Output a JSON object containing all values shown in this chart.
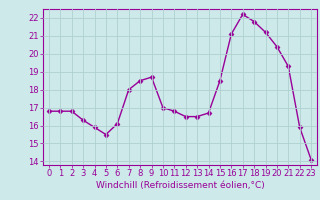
{
  "x": [
    0,
    1,
    2,
    3,
    4,
    5,
    6,
    7,
    8,
    9,
    10,
    11,
    12,
    13,
    14,
    15,
    16,
    17,
    18,
    19,
    20,
    21,
    22,
    23
  ],
  "y": [
    16.8,
    16.8,
    16.8,
    16.3,
    15.9,
    15.5,
    16.1,
    18.0,
    18.5,
    18.7,
    17.0,
    16.8,
    16.5,
    16.5,
    16.7,
    18.5,
    21.1,
    22.2,
    21.8,
    21.2,
    20.4,
    19.3,
    15.9,
    14.1
  ],
  "line_color": "#990099",
  "marker": "D",
  "marker_size": 2.5,
  "background_color": "#cde9e9",
  "grid_color": "#b0d0d0",
  "xlabel": "Windchill (Refroidissement éolien,°C)",
  "ylabel": "",
  "xlim": [
    -0.5,
    23.5
  ],
  "ylim": [
    13.8,
    22.5
  ],
  "yticks": [
    14,
    15,
    16,
    17,
    18,
    19,
    20,
    21,
    22
  ],
  "xticks": [
    0,
    1,
    2,
    3,
    4,
    5,
    6,
    7,
    8,
    9,
    10,
    11,
    12,
    13,
    14,
    15,
    16,
    17,
    18,
    19,
    20,
    21,
    22,
    23
  ],
  "tick_color": "#990099",
  "tick_label_color": "#990099",
  "xlabel_color": "#990099",
  "label_fontsize": 6.5,
  "tick_fontsize": 6.0,
  "line_width": 1.0,
  "spine_color": "#990099"
}
